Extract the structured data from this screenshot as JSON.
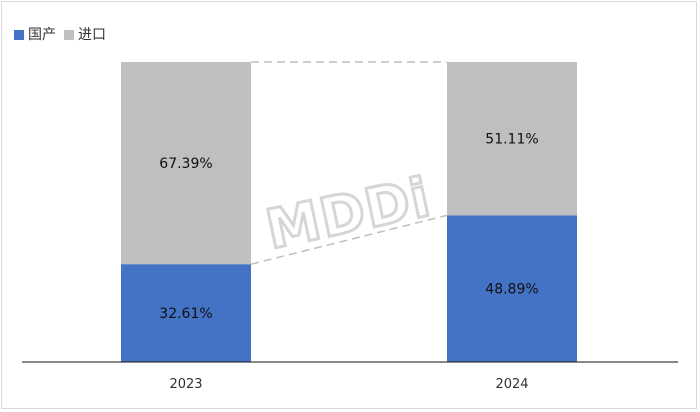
{
  "chart_data": {
    "type": "bar",
    "stacked": true,
    "percent": true,
    "categories": [
      "2023",
      "2024"
    ],
    "series": [
      {
        "name": "国产",
        "values": [
          32.61,
          48.89
        ],
        "labels": [
          "32.61%",
          "48.89%"
        ],
        "color": "#4472c4"
      },
      {
        "name": "进口",
        "values": [
          67.39,
          51.11
        ],
        "labels": [
          "67.39%",
          "51.11%"
        ],
        "color": "#bfbfbf"
      }
    ],
    "ylim": [
      0,
      100
    ],
    "grid": false,
    "legend": "top-left",
    "connector_lines": true
  },
  "legend": {
    "domestic": {
      "label": "国产",
      "color": "#4472c4"
    },
    "imported": {
      "label": "进口",
      "color": "#bfbfbf"
    }
  },
  "watermark": {
    "text": "MDDi"
  }
}
